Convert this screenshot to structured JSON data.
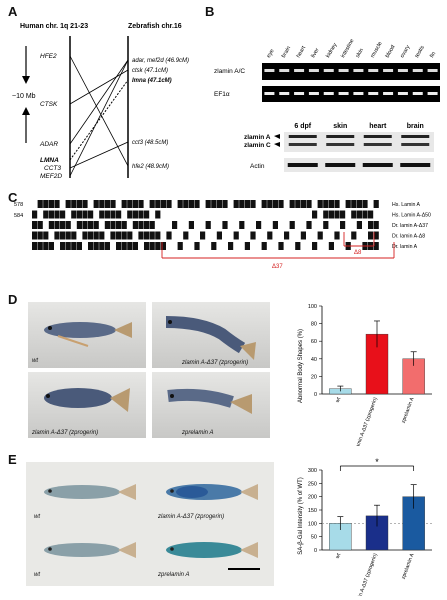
{
  "panels": {
    "a": "A",
    "b": "B",
    "c": "C",
    "d": "D",
    "e": "E"
  },
  "panel_a": {
    "human_title": "Human chr. 1q 21-23",
    "zebrafish_title": "Zebrafish chr.16",
    "scale_label": "~10 Mb",
    "human_genes": [
      "HFE2",
      "CTSK",
      "ADAR",
      "LMNA",
      "CCT3",
      "MEF2D"
    ],
    "zebrafish_genes": [
      "adar, mef2d (46.9cM)",
      "ctsk (47.1cM)",
      "lmna (47.1cM)",
      "cct3 (48.5cM)",
      "hfe2 (48.9cM)"
    ]
  },
  "panel_b": {
    "tissues": [
      "eye",
      "brain",
      "heart",
      "liver",
      "kidney",
      "intestine",
      "skin",
      "muscle",
      "blood",
      "ovary",
      "testis",
      "fin"
    ],
    "row1": "zlamin A/C",
    "row2": "EF1α",
    "lower_cols": [
      "6 dpf",
      "skin",
      "heart",
      "brain"
    ],
    "lamin_a": "zlamin A",
    "lamin_c": "zlamin C",
    "actin": "Actin"
  },
  "panel_c": {
    "pos1": "578",
    "pos2": "584",
    "species": [
      "Hs. Lamin A",
      "Hs. Lamin A-Δ50",
      "Dr. lamin A-Δ37",
      "Dr. lamin A-Δ8",
      "Dr. lamin A"
    ],
    "del37": "Δ37",
    "del8": "Δ8"
  },
  "panel_d": {
    "fish": [
      "wt",
      "zlamin A-Δ37 (zprogerin)",
      "zlamin A-Δ37 (zprogerin)",
      "zprelamin A"
    ],
    "chart_data": {
      "type": "bar",
      "categories": [
        "wt",
        "zlamin A-Δ37 (zprogerin)",
        "zprelamin A"
      ],
      "values": [
        6,
        68,
        40
      ],
      "errors": [
        3,
        15,
        8
      ],
      "colors": [
        "#a7dbe8",
        "#e8101a",
        "#f26d6d"
      ],
      "ylabel": "Abnormal Body Shapes (%)",
      "ylim": [
        0,
        100
      ],
      "yticks": [
        0,
        20,
        40,
        60,
        80,
        100
      ]
    }
  },
  "panel_e": {
    "fish": [
      "wt",
      "zlamin A-Δ37 (zprogerin)",
      "wt",
      "zprelamin A"
    ],
    "chart_data": {
      "type": "bar",
      "categories": [
        "wt",
        "zlamin A-Δ37 (zprogerin)",
        "zprelamin A"
      ],
      "values": [
        100,
        128,
        200
      ],
      "errors": [
        25,
        40,
        45
      ],
      "colors": [
        "#a7dbe8",
        "#1a2f8a",
        "#1a5aa0"
      ],
      "ylabel": "SA-β-Gal Intensity (% of WT)",
      "ylim": [
        0,
        300
      ],
      "yticks": [
        0,
        50,
        100,
        150,
        200,
        250,
        300
      ],
      "significance": "*"
    }
  }
}
